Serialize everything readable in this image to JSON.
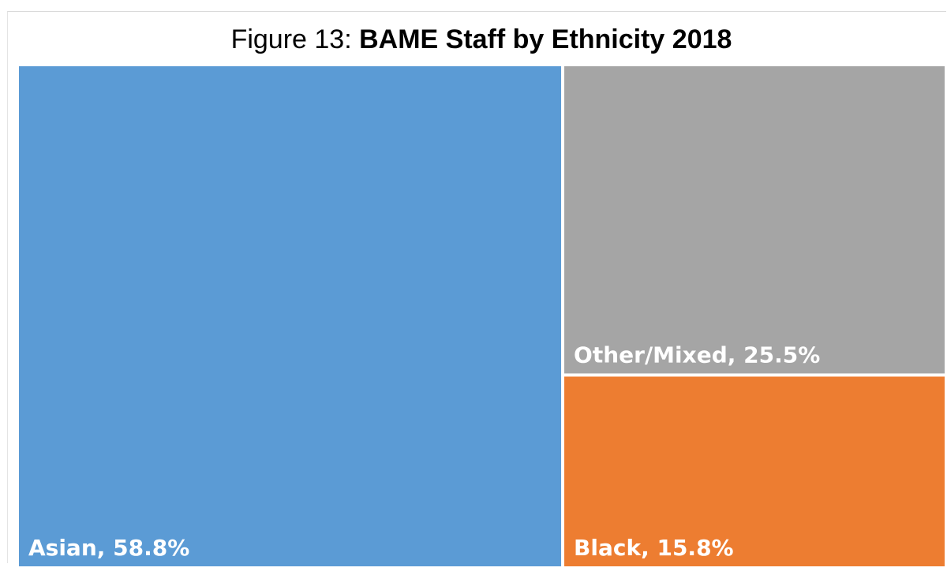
{
  "chart_data": {
    "type": "treemap",
    "title_prefix": "Figure 13: ",
    "title": "BAME Staff by Ethnicity 2018",
    "categories": [
      "Asian",
      "Other/Mixed",
      "Black"
    ],
    "values": [
      58.8,
      25.5,
      15.8
    ],
    "labels": [
      "Asian, 58.8%",
      "Other/Mixed, 25.5%",
      "Black, 15.8%"
    ],
    "colors": [
      "#5b9bd5",
      "#a5a5a5",
      "#ed7d31"
    ],
    "unit": "%"
  }
}
